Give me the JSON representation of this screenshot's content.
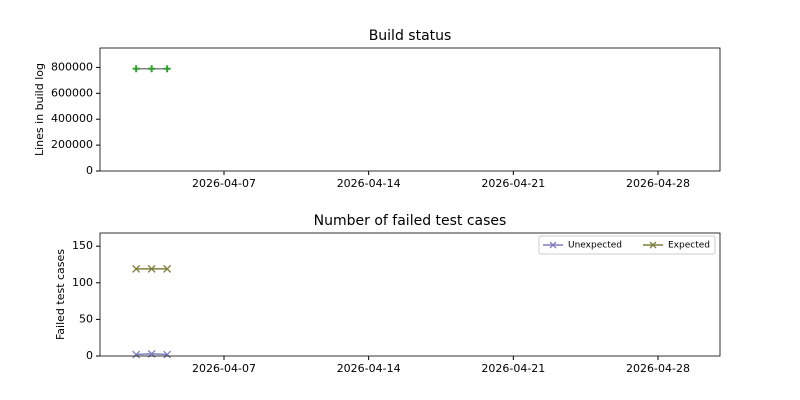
{
  "chart_data": [
    {
      "type": "line",
      "title": "Build status",
      "ylabel": "Lines in build log",
      "x": [
        "2026-04-02T18:00",
        "2026-04-03T12:00",
        "2026-04-04T06:00"
      ],
      "series": [
        {
          "color": "#808080",
          "marker_color": "#2ca02c",
          "marker": "+",
          "values": [
            790000,
            790000,
            790000
          ]
        }
      ],
      "xlim": [
        "2026-04-01",
        "2026-05-01"
      ],
      "xticks": [
        "2026-04-07",
        "2026-04-14",
        "2026-04-21",
        "2026-04-28"
      ],
      "ylim": [
        0,
        950000
      ],
      "yticks": [
        0,
        200000,
        400000,
        600000,
        800000
      ]
    },
    {
      "type": "line",
      "title": "Number of failed test cases",
      "ylabel": "Failed test cases",
      "x": [
        "2026-04-02T18:00",
        "2026-04-03T12:00",
        "2026-04-04T06:00"
      ],
      "series": [
        {
          "name": "Unexpected",
          "color": "#7f7fbf",
          "marker": "x",
          "values": [
            2,
            3,
            2
          ]
        },
        {
          "name": "Expected",
          "color": "#7f7f3f",
          "marker": "x",
          "values": [
            119,
            119,
            119
          ]
        }
      ],
      "xlim": [
        "2026-04-01",
        "2026-05-01"
      ],
      "xticks": [
        "2026-04-07",
        "2026-04-14",
        "2026-04-21",
        "2026-04-28"
      ],
      "ylim": [
        0,
        168
      ],
      "yticks": [
        0,
        50,
        100,
        150
      ],
      "legend": "upper right"
    }
  ]
}
